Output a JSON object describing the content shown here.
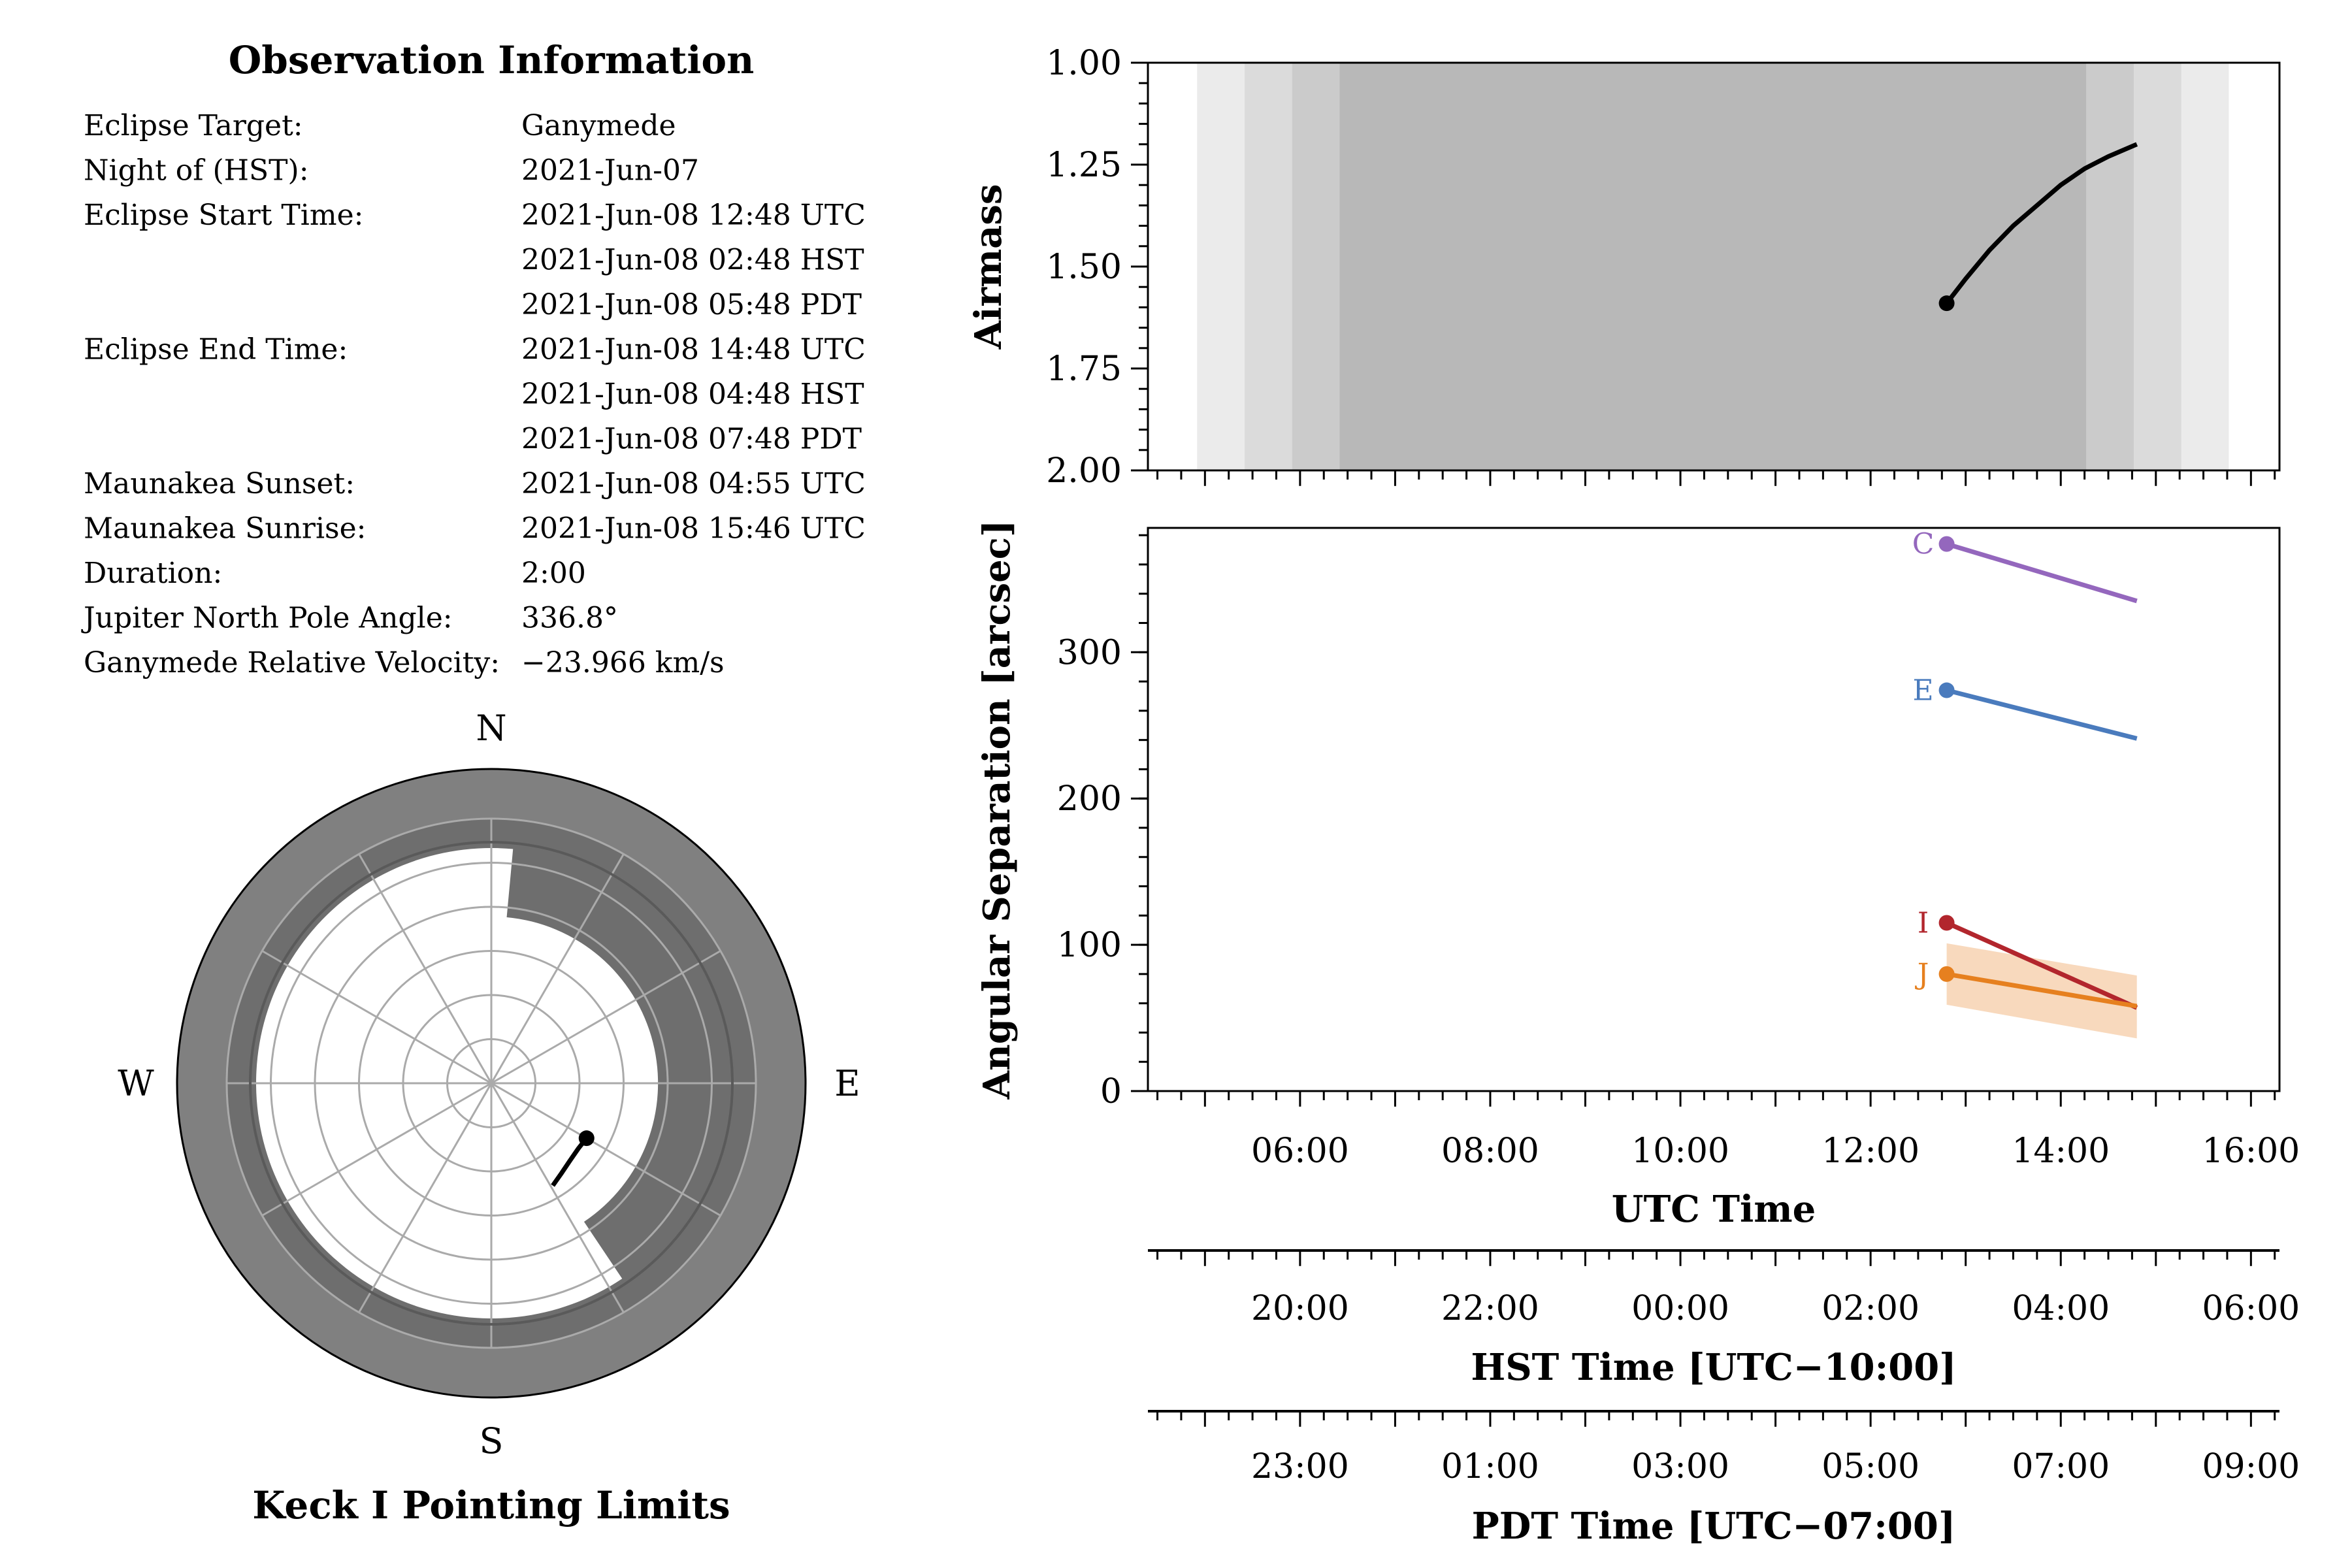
{
  "info": {
    "title": "Observation Information",
    "rows": [
      {
        "label": "Eclipse Target:",
        "value": "Ganymede"
      },
      {
        "label": "Night of (HST):",
        "value": "2021-Jun-07"
      },
      {
        "label": "Eclipse Start Time:",
        "value": "2021-Jun-08 12:48 UTC"
      },
      {
        "label": "",
        "value": "2021-Jun-08 02:48 HST"
      },
      {
        "label": "",
        "value": "2021-Jun-08 05:48 PDT"
      },
      {
        "label": "Eclipse End Time:",
        "value": "2021-Jun-08 14:48 UTC"
      },
      {
        "label": "",
        "value": "2021-Jun-08 04:48 HST"
      },
      {
        "label": "",
        "value": "2021-Jun-08 07:48 PDT"
      },
      {
        "label": "Maunakea Sunset:",
        "value": "2021-Jun-08 04:55 UTC"
      },
      {
        "label": "Maunakea Sunrise:",
        "value": "2021-Jun-08 15:46 UTC"
      },
      {
        "label": "Duration:",
        "value": "2:00"
      },
      {
        "label": "Jupiter North Pole Angle:",
        "value": "336.8°"
      },
      {
        "label": "Ganymede Relative Velocity:",
        "value": "−23.966 km/s"
      }
    ]
  },
  "polar": {
    "title": "Keck I Pointing Limits",
    "compass": {
      "n": "N",
      "s": "S",
      "e": "E",
      "w": "W"
    },
    "grid_rings_deg": [
      15,
      30,
      45,
      60,
      75,
      90
    ],
    "spoke_step_deg": 30,
    "limit_band_colors": {
      "outer": "#808080",
      "inner": "#6e6e6e"
    },
    "notch": {
      "az_from": 0,
      "az_to": 7.7,
      "min_elevation_deg": 33.3
    },
    "keck_limit_az": [
      5.3,
      146.2
    ],
    "keck_limit_min_elevation_deg": 33.3,
    "track": {
      "azimuth": [
        120.0,
        127.0,
        135.0,
        142.0,
        149.0
      ],
      "zenith_angle_deg": [
        37.4,
        37.0,
        37.6,
        38.8,
        40.6
      ],
      "color": "#000000"
    }
  },
  "chart_data": [
    {
      "type": "line",
      "ylabel": "Airmass",
      "ylim": [
        2.0,
        1.0
      ],
      "yticks": [
        "1.00",
        "1.25",
        "1.50",
        "1.75",
        "2.00"
      ],
      "x_axis": "UTC hours",
      "xlim": [
        4.4,
        16.3
      ],
      "twilight_bands": [
        {
          "from": 4.917,
          "to": 15.767,
          "color": "#ebebeb"
        },
        {
          "from": 5.417,
          "to": 15.267,
          "color": "#dbdbdb"
        },
        {
          "from": 5.917,
          "to": 14.767,
          "color": "#cbcbcb"
        },
        {
          "from": 6.417,
          "to": 14.267,
          "color": "#b8b8b8"
        }
      ],
      "series": [
        {
          "x": [
            12.8,
            13.0,
            13.25,
            13.5,
            13.75,
            14.0,
            14.25,
            14.5,
            14.8
          ],
          "y": [
            1.59,
            1.53,
            1.46,
            1.4,
            1.35,
            1.3,
            1.26,
            1.23,
            1.2
          ],
          "color": "#000000"
        }
      ]
    },
    {
      "type": "line",
      "ylabel": "Angular Separation [arcsec]",
      "ylim": [
        0,
        385
      ],
      "yticks": [
        "0",
        "100",
        "200",
        "300"
      ],
      "x_axis": "UTC hours",
      "xlim": [
        4.4,
        16.3
      ],
      "series": [
        {
          "name": "C",
          "x": [
            12.8,
            14.8
          ],
          "y": [
            374,
            335
          ],
          "color": "#9467bd"
        },
        {
          "name": "E",
          "x": [
            12.8,
            14.8
          ],
          "y": [
            274,
            241
          ],
          "color": "#4a7bbd"
        },
        {
          "name": "I",
          "x": [
            12.8,
            14.8
          ],
          "y": [
            115,
            57
          ],
          "color": "#b2262d"
        },
        {
          "name": "J",
          "x": [
            12.8,
            14.8
          ],
          "y": [
            80,
            58
          ],
          "color": "#e6801f",
          "band_upper": [
            101,
            79
          ],
          "band_lower": [
            59,
            36
          ],
          "band_color": "#f8d9bd"
        }
      ]
    }
  ],
  "time_axes": [
    {
      "label": "UTC Time",
      "ticks": [
        "06:00",
        "08:00",
        "10:00",
        "12:00",
        "14:00",
        "16:00"
      ],
      "tick_hours_utc": [
        6,
        8,
        10,
        12,
        14,
        16
      ]
    },
    {
      "label": "HST Time [UTC−10:00]",
      "ticks": [
        "20:00",
        "22:00",
        "00:00",
        "02:00",
        "04:00",
        "06:00"
      ],
      "tick_hours_utc": [
        6,
        8,
        10,
        12,
        14,
        16
      ]
    },
    {
      "label": "PDT Time [UTC−07:00]",
      "ticks": [
        "23:00",
        "01:00",
        "03:00",
        "05:00",
        "07:00",
        "09:00"
      ],
      "tick_hours_utc": [
        6,
        8,
        10,
        12,
        14,
        16
      ]
    }
  ]
}
